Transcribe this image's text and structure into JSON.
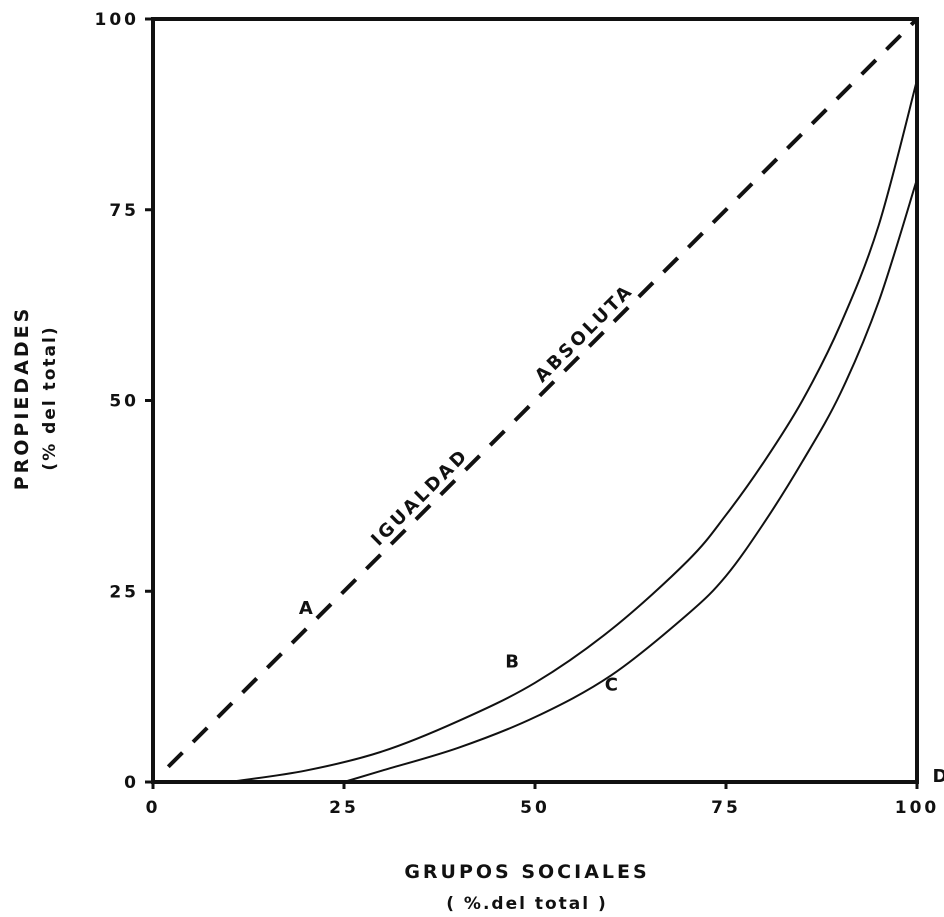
{
  "chart_data": {
    "type": "line",
    "title": "",
    "xlabel": "GRUPOS SOCIALES",
    "xlabel_sub": "( %.del total )",
    "ylabel": "PROPIEDADES",
    "ylabel_sub": "(% del total)",
    "xlim": [
      0,
      100
    ],
    "ylim": [
      0,
      100
    ],
    "x_ticks": [
      "0",
      "25",
      "50",
      "75",
      "100"
    ],
    "y_ticks": [
      "0",
      "25",
      "50",
      "75",
      "100"
    ],
    "grid": false,
    "legend": "none",
    "series": [
      {
        "name": "IGUALDAD ABSOLUTA",
        "style": "dashed",
        "x": [
          2,
          100
        ],
        "y": [
          2,
          100
        ]
      },
      {
        "style": "solid",
        "x": [
          10,
          20,
          30,
          40,
          50,
          60,
          70,
          75,
          80,
          85,
          90,
          95,
          100
        ],
        "y": [
          0,
          1.5,
          4,
          8,
          13,
          20,
          29,
          35,
          42,
          50,
          60,
          73,
          92
        ]
      },
      {
        "style": "solid",
        "x": [
          25,
          30,
          40,
          50,
          60,
          70,
          75,
          80,
          85,
          90,
          95,
          100
        ],
        "y": [
          0,
          1.5,
          4.5,
          8.5,
          14,
          22,
          27,
          34,
          42,
          51,
          63,
          79
        ]
      }
    ],
    "annotations": [
      {
        "text": "A",
        "x": 20,
        "y": 22
      },
      {
        "text": "B",
        "x": 47,
        "y": 15
      },
      {
        "text": "C",
        "x": 60,
        "y": 12
      },
      {
        "text": "D",
        "x": 103,
        "y": 0
      }
    ],
    "diagonal_labels": [
      "IGUALDAD",
      "ABSOLUTA"
    ]
  }
}
